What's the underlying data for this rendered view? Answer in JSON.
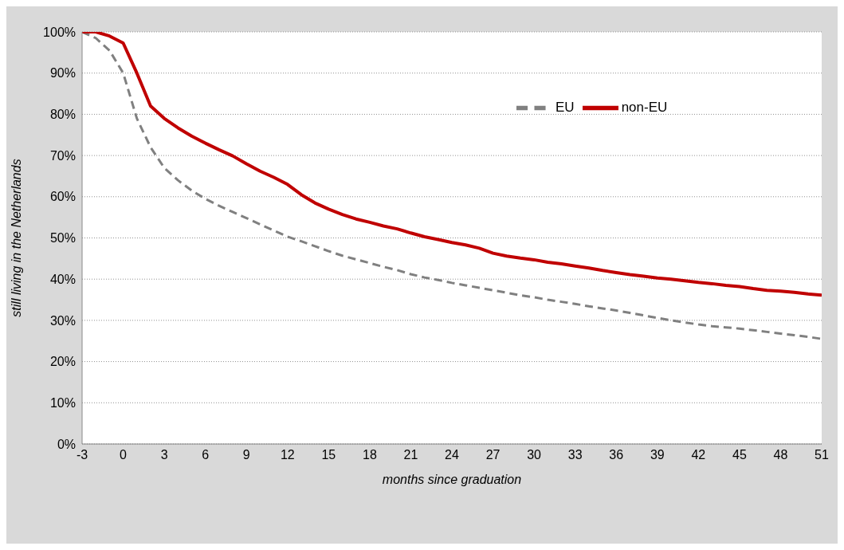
{
  "chart_data": {
    "type": "line",
    "xlabel": "months since graduation",
    "ylabel": "still living in the Netherlands",
    "x": [
      -3,
      -2,
      -1,
      0,
      1,
      2,
      3,
      4,
      5,
      6,
      7,
      8,
      9,
      10,
      11,
      12,
      13,
      14,
      15,
      16,
      17,
      18,
      19,
      20,
      21,
      22,
      23,
      24,
      25,
      26,
      27,
      28,
      29,
      30,
      31,
      32,
      33,
      34,
      35,
      36,
      37,
      38,
      39,
      40,
      41,
      42,
      43,
      44,
      45,
      46,
      47,
      48,
      49,
      50,
      51
    ],
    "series": [
      {
        "name": "EU",
        "color": "#808080",
        "line_style": "dashed",
        "values": [
          100,
          98.5,
          95.5,
          90,
          79,
          72,
          67,
          64,
          61.5,
          59.5,
          57.8,
          56.3,
          54.8,
          53.3,
          51.8,
          50.3,
          49.2,
          48,
          46.8,
          45.7,
          44.8,
          43.9,
          43,
          42.2,
          41.2,
          40.4,
          39.8,
          39.1,
          38.5,
          37.9,
          37.3,
          36.7,
          36.1,
          35.6,
          35,
          34.5,
          34,
          33.4,
          32.9,
          32.4,
          31.8,
          31.2,
          30.6,
          30,
          29.5,
          29,
          28.6,
          28.3,
          28,
          27.6,
          27.2,
          26.8,
          26.4,
          26,
          25.5
        ]
      },
      {
        "name": "non-EU",
        "color": "#c00000",
        "line_style": "solid",
        "values": [
          100,
          100,
          99,
          97.3,
          90,
          82,
          79,
          76.7,
          74.7,
          73,
          71.4,
          69.9,
          68,
          66.2,
          64.7,
          63,
          60.5,
          58.5,
          57,
          55.7,
          54.6,
          53.8,
          52.9,
          52.2,
          51.2,
          50.3,
          49.6,
          48.9,
          48.3,
          47.5,
          46.3,
          45.6,
          45.1,
          44.7,
          44.1,
          43.7,
          43.2,
          42.7,
          42.1,
          41.6,
          41.1,
          40.7,
          40.3,
          40,
          39.6,
          39.2,
          38.9,
          38.5,
          38.2,
          37.7,
          37.3,
          37.1,
          36.8,
          36.4,
          36.1
        ]
      }
    ],
    "xlim": [
      -3,
      51
    ],
    "xticks": [
      -3,
      0,
      3,
      6,
      9,
      12,
      15,
      18,
      21,
      24,
      27,
      30,
      33,
      36,
      39,
      42,
      45,
      48,
      51
    ],
    "ylim": [
      0,
      100
    ],
    "yticks": [
      {
        "value": 0,
        "label": "0%"
      },
      {
        "value": 10,
        "label": "10%"
      },
      {
        "value": 20,
        "label": "20%"
      },
      {
        "value": 30,
        "label": "30%"
      },
      {
        "value": 40,
        "label": "40%"
      },
      {
        "value": 50,
        "label": "50%"
      },
      {
        "value": 60,
        "label": "60%"
      },
      {
        "value": 70,
        "label": "70%"
      },
      {
        "value": 80,
        "label": "80%"
      },
      {
        "value": 90,
        "label": "90%"
      },
      {
        "value": 100,
        "label": "100%"
      }
    ],
    "grid": "y",
    "legend": "top right",
    "marker": "none"
  }
}
